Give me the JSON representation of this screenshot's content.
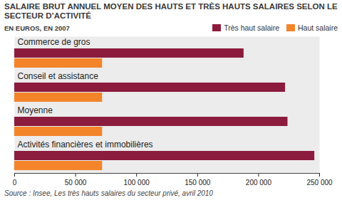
{
  "chart_data": {
    "type": "bar",
    "orientation": "horizontal",
    "title": "SALAIRE BRUT ANNUEL MOYEN DES HAUTS ET TRÈS HAUTS SALAIRES SELON LE SECTEUR D’ACTIVITÉ",
    "subtitle": "EN EUROS, EN 2007",
    "source": "Source : Insee, Les très hauts salaires du secteur privé, avril 2010",
    "categories": [
      "Commerce de gros",
      "Conseil et assistance",
      "Moyenne",
      "Activités financières et immobilières"
    ],
    "series": [
      {
        "name": "Très haut salaire",
        "color": "#8c1c3e",
        "values": [
          188000,
          222000,
          224000,
          246000
        ]
      },
      {
        "name": "Haut salaire",
        "color": "#f4842a",
        "values": [
          72000,
          72000,
          72000,
          72000
        ]
      }
    ],
    "xlim": [
      0,
      250000
    ],
    "xticks": [
      0,
      {
        "value": 50000,
        "label": "50 000"
      },
      {
        "value": 100000,
        "label": "100 000"
      },
      {
        "value": 150000,
        "label": "150 000"
      },
      {
        "value": 200000,
        "label": "200 000"
      },
      {
        "value": 250000,
        "label": "250 000"
      }
    ],
    "grid": false,
    "legend": "top-right",
    "data_labels": false
  }
}
